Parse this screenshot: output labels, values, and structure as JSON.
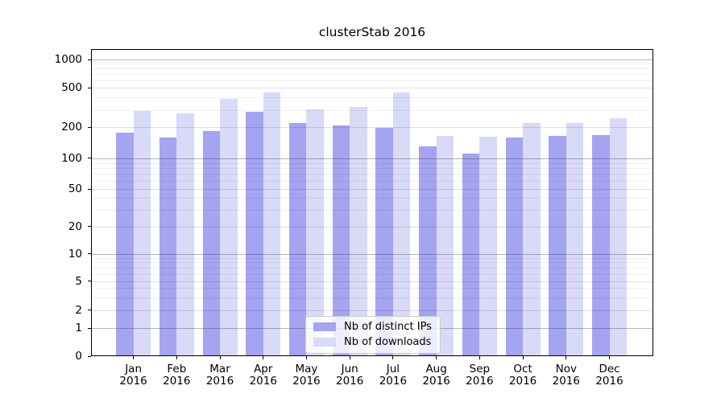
{
  "chart_data": {
    "type": "bar",
    "title": "clusterStab 2016",
    "categories": [
      "Jan 2016",
      "Feb 2016",
      "Mar 2016",
      "Apr 2016",
      "May 2016",
      "Jun 2016",
      "Jul 2016",
      "Aug 2016",
      "Sep 2016",
      "Oct 2016",
      "Nov 2016",
      "Dec 2016"
    ],
    "series": [
      {
        "key": "distinct-ips",
        "name": "Nb of distinct IPs",
        "color": "#a4a4f0",
        "values": [
          178,
          160,
          185,
          287,
          220,
          208,
          196,
          130,
          110,
          159,
          165,
          168
        ]
      },
      {
        "key": "downloads",
        "name": "Nb of downloads",
        "color": "#d9d9f8",
        "values": [
          290,
          274,
          390,
          452,
          306,
          324,
          450,
          164,
          163,
          220,
          222,
          245
        ]
      }
    ],
    "yscale": "symlog",
    "yticks": [
      0,
      1,
      2,
      5,
      10,
      20,
      50,
      100,
      200,
      500,
      1000
    ],
    "ylim": [
      0,
      1280
    ],
    "xlabel": "",
    "ylabel": "",
    "grid": true,
    "legend_position": "lower center"
  }
}
